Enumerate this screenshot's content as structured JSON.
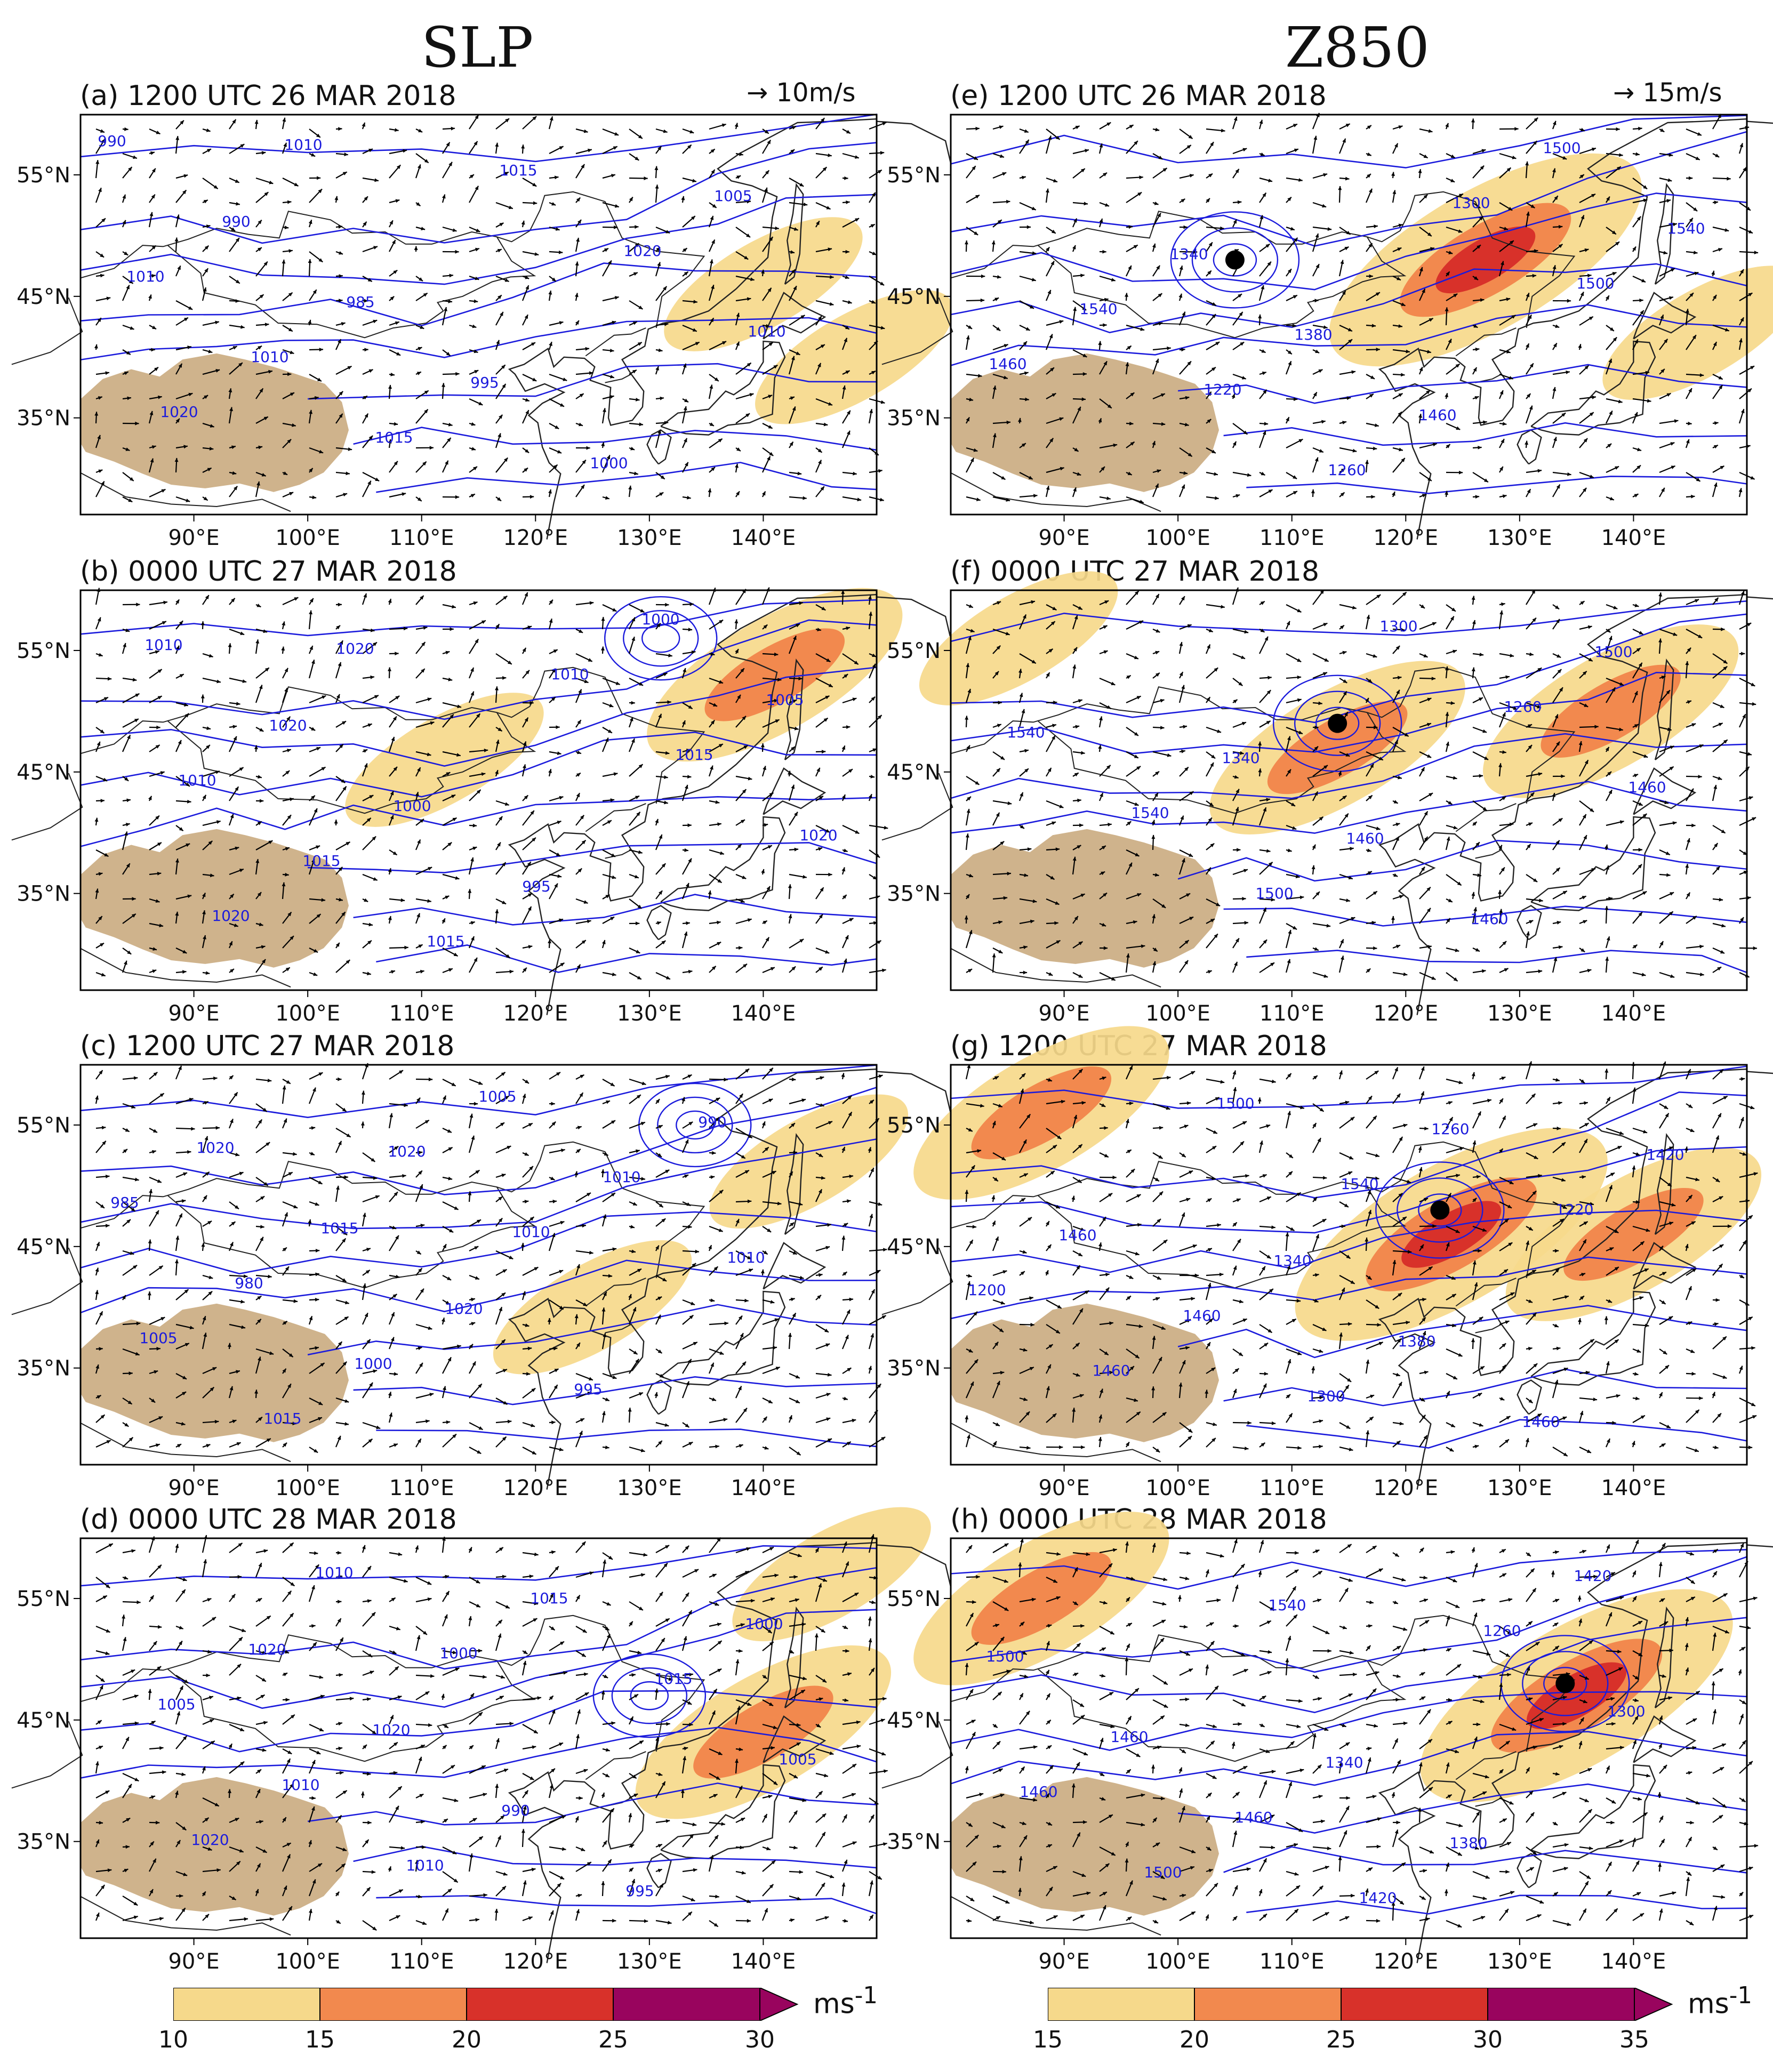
{
  "columns": {
    "left": "SLP",
    "right": "Z850"
  },
  "reference_vectors": {
    "left": "10m/s",
    "right": "15m/s"
  },
  "lat_labels": [
    "55°N",
    "45°N",
    "35°N"
  ],
  "lon_labels": [
    "90°E",
    "100°E",
    "110°E",
    "120°E",
    "130°E",
    "140°E"
  ],
  "panels": [
    {
      "id": "a",
      "title": "(a) 1200 UTC 26 MAR 2018",
      "contour_labels": [
        "990",
        "990",
        "985",
        "995",
        "1000",
        "1005",
        "1010",
        "1010",
        "1015",
        "1015",
        "1020",
        "1010",
        "1020",
        "1010"
      ],
      "jets": [
        {
          "lat": 46,
          "lon": 140,
          "strength": 1
        },
        {
          "lat": 40,
          "lon": 148,
          "strength": 1
        }
      ]
    },
    {
      "id": "b",
      "title": "(b) 0000 UTC 27 MAR 2018",
      "contour_labels": [
        "1010",
        "1020",
        "1000",
        "995",
        "1000",
        "1005",
        "1010",
        "1015",
        "1015",
        "1010",
        "1015",
        "1020",
        "1020",
        "1020"
      ],
      "jets": [
        {
          "lat": 53,
          "lon": 141,
          "strength": 2
        },
        {
          "lat": 46,
          "lon": 112,
          "strength": 1
        }
      ]
    },
    {
      "id": "c",
      "title": "(c) 1200 UTC 27 MAR 2018",
      "contour_labels": [
        "1020",
        "1015",
        "1020",
        "995",
        "990",
        "985",
        "980",
        "1000",
        "1005",
        "1010",
        "1010",
        "1005",
        "1015",
        "1020",
        "1010"
      ],
      "jets": [
        {
          "lat": 52,
          "lon": 144,
          "strength": 1
        },
        {
          "lat": 40,
          "lon": 125,
          "strength": 1
        }
      ]
    },
    {
      "id": "d",
      "title": "(d) 0000 UTC 28 MAR 2018",
      "contour_labels": [
        "1020",
        "1020",
        "990",
        "995",
        "1000",
        "1005",
        "1010",
        "1010",
        "1015",
        "1015",
        "1005",
        "1020",
        "1010",
        "1000"
      ],
      "jets": [
        {
          "lat": 44,
          "lon": 140,
          "strength": 2
        },
        {
          "lat": 57,
          "lon": 146,
          "strength": 1
        }
      ]
    },
    {
      "id": "e",
      "title": "(e) 1200 UTC 26 MAR 2018",
      "contour_labels": [
        "1340",
        "1380",
        "1460",
        "1500",
        "1540",
        "1540",
        "1220",
        "1260",
        "1300",
        "1500",
        "1460"
      ],
      "jets": [
        {
          "lat": 48,
          "lon": 127,
          "strength": 3
        },
        {
          "lat": 42,
          "lon": 146,
          "strength": 1
        }
      ],
      "cyclone_center": {
        "lat": 48,
        "lon": 105
      }
    },
    {
      "id": "f",
      "title": "(f) 0000 UTC 27 MAR 2018",
      "contour_labels": [
        "1340",
        "1460",
        "1460",
        "1500",
        "1540",
        "1540",
        "1500",
        "1300",
        "1260",
        "1460"
      ],
      "jets": [
        {
          "lat": 47,
          "lon": 114,
          "strength": 2
        },
        {
          "lat": 50,
          "lon": 138,
          "strength": 2
        },
        {
          "lat": 56,
          "lon": 86,
          "strength": 1
        }
      ],
      "cyclone_center": {
        "lat": 49,
        "lon": 114
      }
    },
    {
      "id": "g",
      "title": "(g) 1200 UTC 27 MAR 2018",
      "contour_labels": [
        "1340",
        "1380",
        "1460",
        "1420",
        "1460",
        "1460",
        "1300",
        "1260",
        "1220",
        "1200",
        "1460",
        "1500",
        "1540"
      ],
      "jets": [
        {
          "lat": 46,
          "lon": 124,
          "strength": 3
        },
        {
          "lat": 46,
          "lon": 140,
          "strength": 2
        },
        {
          "lat": 56,
          "lon": 88,
          "strength": 2
        }
      ],
      "cyclone_center": {
        "lat": 48,
        "lon": 123
      }
    },
    {
      "id": "h",
      "title": "(h) 0000 UTC 28 MAR 2018",
      "contour_labels": [
        "1340",
        "1380",
        "1420",
        "1500",
        "1460",
        "1460",
        "1420",
        "1260",
        "1300",
        "1460",
        "1500",
        "1540"
      ],
      "jets": [
        {
          "lat": 47,
          "lon": 135,
          "strength": 3
        },
        {
          "lat": 55,
          "lon": 88,
          "strength": 2
        }
      ],
      "cyclone_center": {
        "lat": 48,
        "lon": 134
      }
    }
  ],
  "colorbars": [
    {
      "ticks": [
        "10",
        "15",
        "20",
        "25",
        "30"
      ],
      "unit": "ms-1"
    },
    {
      "ticks": [
        "15",
        "20",
        "25",
        "30",
        "35"
      ],
      "unit": "ms-1"
    }
  ],
  "colors": {
    "shade1": "#f6d98b",
    "shade2": "#f2894e",
    "shade3": "#d8312a",
    "shade4": "#99045e",
    "contour": "#1b1bdc",
    "coast": "#222222",
    "plateau": "#cfb38c",
    "cyclone": "#000000"
  },
  "icons": [
    "arrow-right-icon",
    "cyclone-center-icon",
    "colorbar-extend-arrow-icon"
  ]
}
